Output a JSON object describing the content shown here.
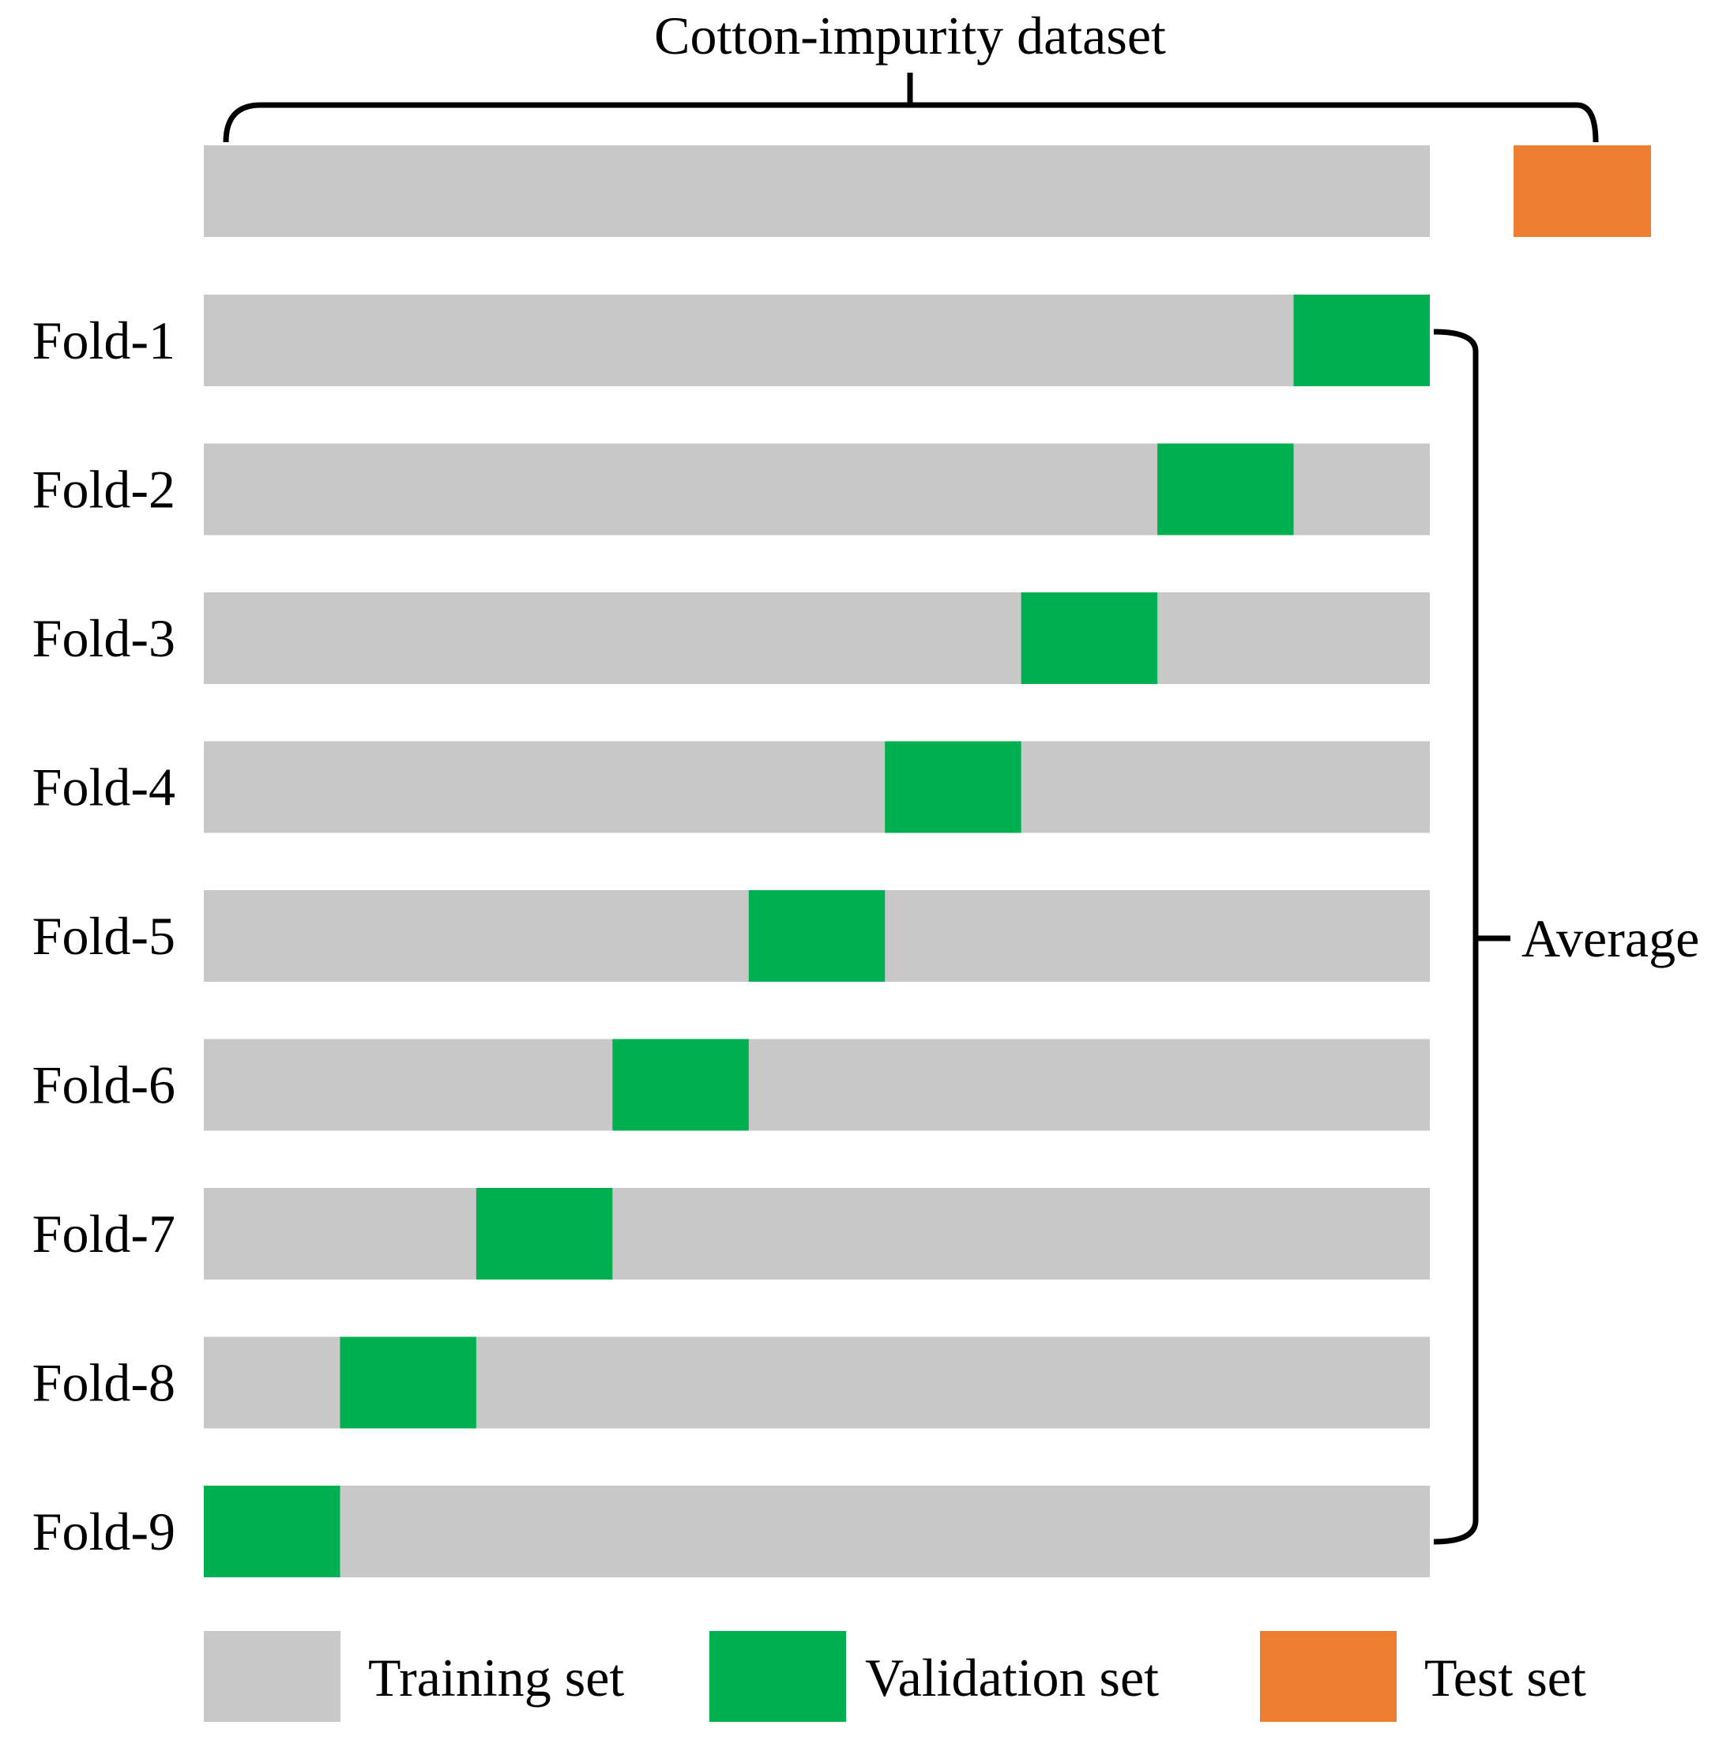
{
  "title": "Cotton-impurity dataset",
  "colors": {
    "training": "#c8c8c8",
    "validation": "#00b050",
    "test": "#ed7d31",
    "bracket": "#000000"
  },
  "segments_per_fold": 9,
  "folds": [
    {
      "label": "Fold-1",
      "validation_segment": 9
    },
    {
      "label": "Fold-2",
      "validation_segment": 8
    },
    {
      "label": "Fold-3",
      "validation_segment": 7
    },
    {
      "label": "Fold-4",
      "validation_segment": 6
    },
    {
      "label": "Fold-5",
      "validation_segment": 5
    },
    {
      "label": "Fold-6",
      "validation_segment": 4
    },
    {
      "label": "Fold-7",
      "validation_segment": 3
    },
    {
      "label": "Fold-8",
      "validation_segment": 2
    },
    {
      "label": "Fold-9",
      "validation_segment": 1
    }
  ],
  "average_label": "Average",
  "legend": [
    {
      "key": "training",
      "label": "Training set"
    },
    {
      "key": "validation",
      "label": "Validation set"
    },
    {
      "key": "test",
      "label": "Test set"
    }
  ]
}
